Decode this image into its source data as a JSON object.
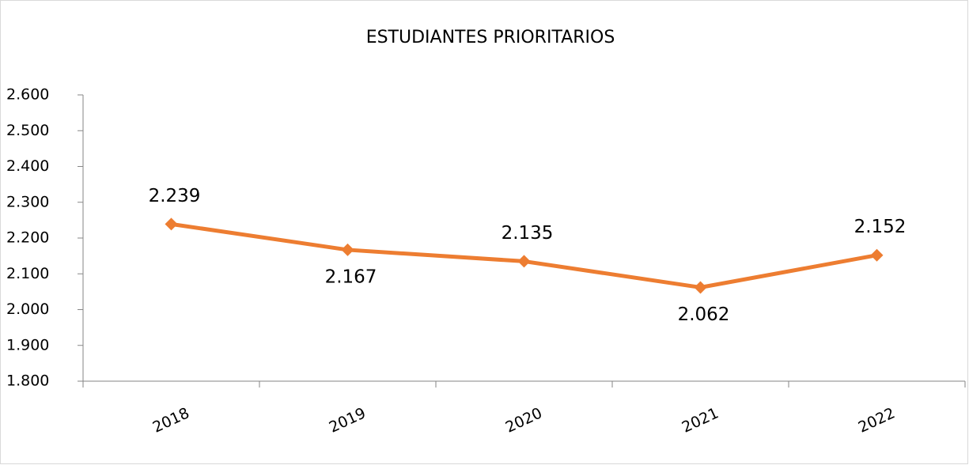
{
  "chart_data": {
    "type": "line",
    "title": "ESTUDIANTES PRIORITARIOS",
    "categories": [
      "2018",
      "2019",
      "2020",
      "2021",
      "2022"
    ],
    "series": [
      {
        "name": "Estudiantes prioritarios",
        "color": "#ed7d31",
        "values": [
          2239,
          2167,
          2135,
          2062,
          2152
        ],
        "value_labels": [
          "2.239",
          "2.167",
          "2.135",
          "2.062",
          "2.152"
        ]
      }
    ],
    "ylim": [
      1800,
      2600
    ],
    "yticks": [
      {
        "value": 1800,
        "label": "1.800"
      },
      {
        "value": 1900,
        "label": "1.900"
      },
      {
        "value": 2000,
        "label": "2.000"
      },
      {
        "value": 2100,
        "label": "2.100"
      },
      {
        "value": 2200,
        "label": "2.200"
      },
      {
        "value": 2300,
        "label": "2.300"
      },
      {
        "value": 2400,
        "label": "2.400"
      },
      {
        "value": 2500,
        "label": "2.500"
      },
      {
        "value": 2600,
        "label": "2.600"
      }
    ],
    "grid": false,
    "legend": false
  }
}
